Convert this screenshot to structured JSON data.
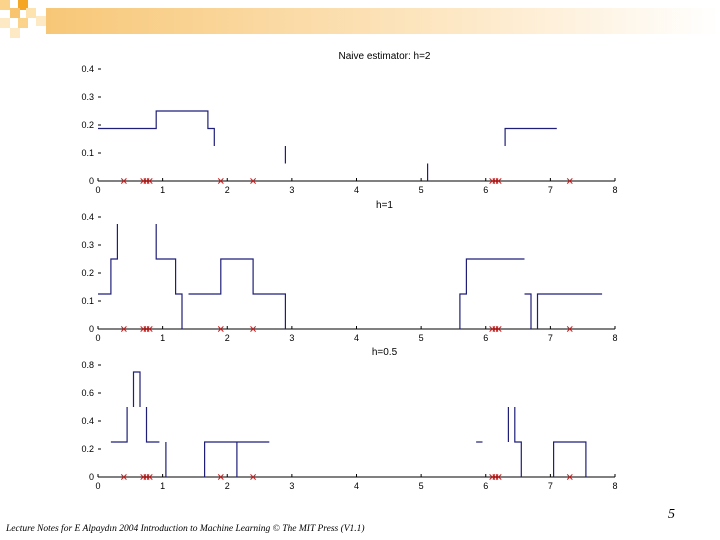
{
  "slide": {
    "number": "5",
    "footer": "Lecture Notes for E Alpaydın 2004 Introduction to Machine Learning © The MIT Press (V1.1)",
    "accent_colors": [
      "#f5a623",
      "#fbd38a",
      "#fde9c4"
    ]
  },
  "chart_data": [
    {
      "type": "line",
      "title": "Naive estimator: h=2",
      "xlim": [
        0,
        8
      ],
      "ylim": [
        0,
        0.4
      ],
      "xticks": [
        "0",
        "1",
        "2",
        "3",
        "4",
        "5",
        "6",
        "7",
        "8"
      ],
      "yticks": [
        "0",
        "0.1",
        "0.2",
        "0.3",
        "0.4"
      ],
      "line_color": "#1f1f7a",
      "marker_color": "#cc2222",
      "segments": [
        [
          [
            0,
            0.1875
          ],
          [
            0.9,
            0.1875
          ],
          [
            0.9,
            0.25
          ],
          [
            1.7,
            0.25
          ],
          [
            1.7,
            0.1875
          ],
          [
            1.8,
            0.1875
          ],
          [
            1.8,
            0.125
          ]
        ],
        [
          [
            2.9,
            0.125
          ],
          [
            2.9,
            0.0625
          ]
        ],
        [
          [
            5.1,
            0.0625
          ],
          [
            5.1,
            0
          ]
        ],
        [
          [
            6.3,
            0.125
          ],
          [
            6.3,
            0.1875
          ],
          [
            7.1,
            0.1875
          ]
        ]
      ],
      "samples": [
        0.4,
        0.7,
        0.75,
        0.8,
        1.9,
        2.4,
        6.1,
        6.15,
        6.2,
        7.3
      ]
    },
    {
      "type": "line",
      "title": "h=1",
      "xlim": [
        0,
        8
      ],
      "ylim": [
        0,
        0.4
      ],
      "xticks": [
        "0",
        "1",
        "2",
        "3",
        "4",
        "5",
        "6",
        "7",
        "8"
      ],
      "yticks": [
        "0",
        "0.1",
        "0.2",
        "0.3",
        "0.4"
      ],
      "line_color": "#1f1f7a",
      "marker_color": "#cc2222",
      "segments": [
        [
          [
            0,
            0.125
          ],
          [
            0.2,
            0.125
          ],
          [
            0.2,
            0.25
          ],
          [
            0.3,
            0.25
          ],
          [
            0.3,
            0.375
          ]
        ],
        [
          [
            0.9,
            0.375
          ],
          [
            0.9,
            0.25
          ],
          [
            1.2,
            0.25
          ],
          [
            1.2,
            0.125
          ],
          [
            1.3,
            0.125
          ],
          [
            1.3,
            0
          ]
        ],
        [
          [
            1.4,
            0.125
          ],
          [
            1.9,
            0.125
          ],
          [
            1.9,
            0.25
          ],
          [
            2.4,
            0.25
          ],
          [
            2.4,
            0.125
          ],
          [
            2.9,
            0.125
          ],
          [
            2.9,
            0
          ]
        ],
        [
          [
            5.6,
            0
          ],
          [
            5.6,
            0.125
          ],
          [
            5.7,
            0.125
          ],
          [
            5.7,
            0.25
          ],
          [
            6.6,
            0.25
          ]
        ],
        [
          [
            6.6,
            0.125
          ],
          [
            6.7,
            0.125
          ],
          [
            6.7,
            0
          ]
        ],
        [
          [
            6.8,
            0
          ],
          [
            6.8,
            0.125
          ],
          [
            7.8,
            0.125
          ]
        ]
      ],
      "samples": [
        0.4,
        0.7,
        0.75,
        0.8,
        1.9,
        2.4,
        6.1,
        6.15,
        6.2,
        7.3
      ]
    },
    {
      "type": "line",
      "title": "h=0.5",
      "xlim": [
        0,
        8
      ],
      "ylim": [
        0,
        0.8
      ],
      "xticks": [
        "0",
        "1",
        "2",
        "3",
        "4",
        "5",
        "6",
        "7",
        "8"
      ],
      "yticks": [
        "0",
        "0.2",
        "0.4",
        "0.6",
        "0.8"
      ],
      "line_color": "#1f1f7a",
      "marker_color": "#cc2222",
      "segments": [
        [
          [
            0.2,
            0.25
          ],
          [
            0.45,
            0.25
          ],
          [
            0.45,
            0.5
          ]
        ],
        [
          [
            0.55,
            0.5
          ],
          [
            0.55,
            0.75
          ],
          [
            0.65,
            0.75
          ],
          [
            0.65,
            0.5
          ]
        ],
        [
          [
            0.75,
            0.5
          ],
          [
            0.75,
            0.25
          ],
          [
            0.95,
            0.25
          ],
          [
            0.95,
            0.25
          ]
        ],
        [
          [
            1.05,
            0.25
          ],
          [
            1.05,
            0
          ]
        ],
        [
          [
            1.65,
            0
          ],
          [
            1.65,
            0.25
          ],
          [
            2.65,
            0.25
          ]
        ],
        [
          [
            2.15,
            0.25
          ],
          [
            2.15,
            0
          ]
        ],
        [
          [
            5.85,
            0.25
          ],
          [
            5.95,
            0.25
          ]
        ],
        [
          [
            6.35,
            0.25
          ],
          [
            6.35,
            0.5
          ]
        ],
        [
          [
            6.45,
            0.5
          ],
          [
            6.45,
            0.25
          ],
          [
            6.55,
            0.25
          ],
          [
            6.55,
            0
          ]
        ],
        [
          [
            7.05,
            0
          ],
          [
            7.05,
            0.25
          ],
          [
            7.55,
            0.25
          ],
          [
            7.55,
            0
          ]
        ]
      ],
      "samples": [
        0.4,
        0.7,
        0.75,
        0.8,
        1.9,
        2.4,
        6.1,
        6.15,
        6.2,
        7.3
      ]
    }
  ]
}
